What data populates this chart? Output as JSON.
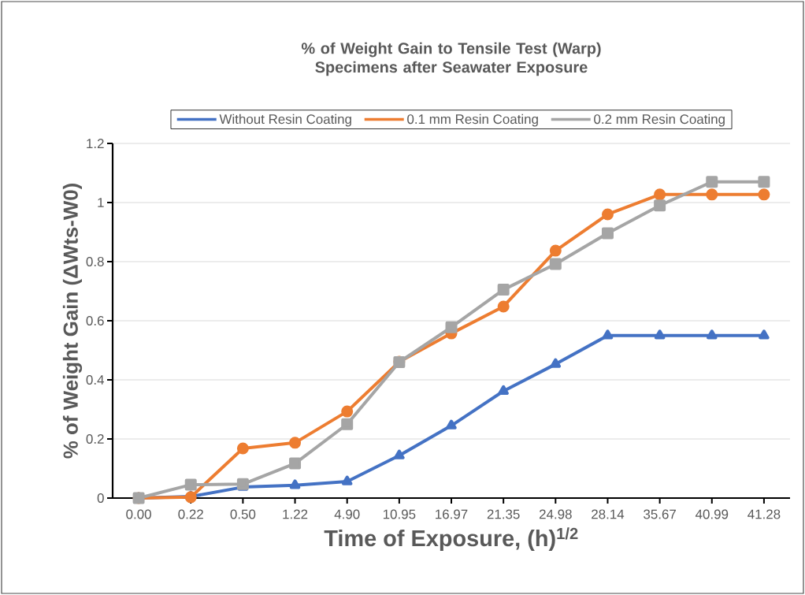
{
  "chart_data": {
    "type": "line",
    "title": "% of Weight Gain to Tensile Test (Warp) Specimens after Seawater Exposure",
    "xlabel": "Time of  Exposure, (h)$^{1/2}$",
    "ylabel": "% of Weight Gain (ΔWts-W0)",
    "categories": [
      "0.00",
      "0.22",
      "0.50",
      "1.22",
      "4.90",
      "10.95",
      "16.97",
      "21.35",
      "24.98",
      "28.14",
      "35.67",
      "40.99",
      "41.28"
    ],
    "series": [
      {
        "name": "Without Resin Coating",
        "color": "#4472c4",
        "marker": "triangle",
        "values": [
          0,
          0.005,
          0.037,
          0.043,
          0.056,
          0.144,
          0.245,
          0.362,
          0.453,
          0.55,
          0.55,
          0.55,
          0.55
        ]
      },
      {
        "name": "0.1 mm Resin Coating",
        "color": "#ed7d31",
        "marker": "circle",
        "values": [
          0,
          0.003,
          0.168,
          0.187,
          0.293,
          0.461,
          0.557,
          0.648,
          0.837,
          0.96,
          1.027,
          1.027,
          1.027
        ]
      },
      {
        "name": "0.2 mm Resin Coating",
        "color": "#a5a5a5",
        "marker": "square",
        "values": [
          0,
          0.045,
          0.047,
          0.117,
          0.25,
          0.46,
          0.578,
          0.705,
          0.792,
          0.896,
          0.99,
          1.07,
          1.07
        ]
      }
    ],
    "ylim": [
      0,
      1.2
    ],
    "yticks": [
      0,
      0.2,
      0.4,
      0.6,
      0.8,
      1,
      1.2
    ],
    "grid": "y",
    "legend": "top"
  }
}
